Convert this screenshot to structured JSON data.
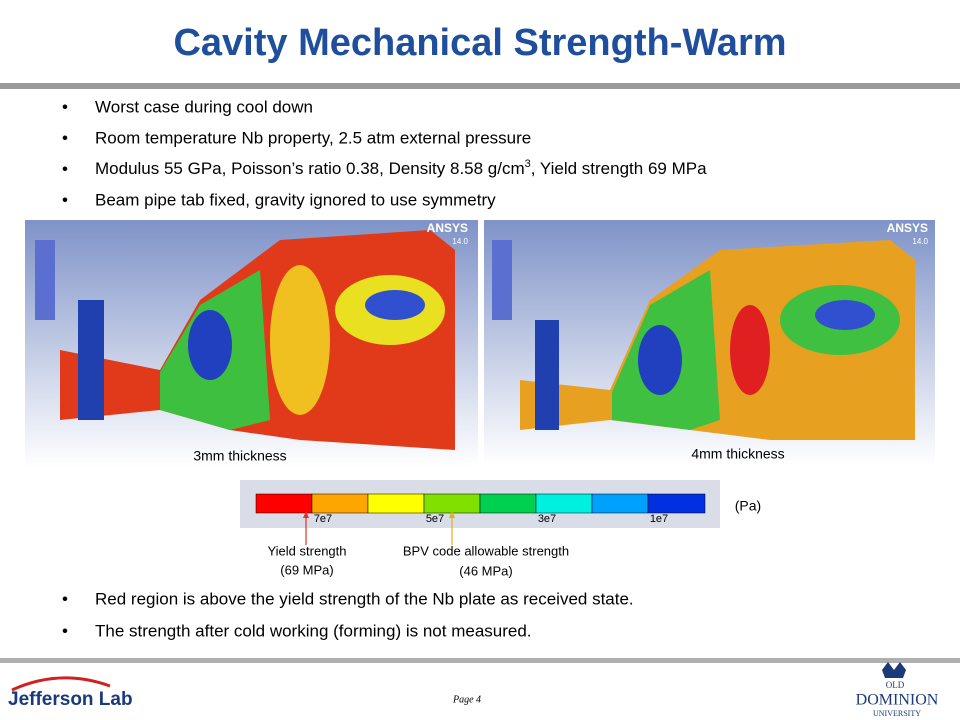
{
  "header": {
    "title": "Cavity Mechanical Strength-Warm"
  },
  "bullets_top": [
    {
      "text": "Worst case during cool down"
    },
    {
      "text": "Room temperature Nb property, 2.5 atm external pressure"
    },
    {
      "text_before": "Modulus 55 GPa, Poisson’s ratio 0.38, Density 8.58 g/cm",
      "superscript": "3",
      "text_after": ", Yield strength 69 MPa"
    },
    {
      "text": "Beam pipe tab fixed, gravity ignored to use symmetry"
    }
  ],
  "images": [
    {
      "caption": "3mm thickness",
      "logo": "ANSYS",
      "version": "14.0"
    },
    {
      "caption": "4mm thickness",
      "logo": "ANSYS",
      "version": "14.0"
    }
  ],
  "colorbar": {
    "ticks": [
      "7e7",
      "5e7",
      "3e7",
      "1e7"
    ],
    "unit": "(Pa)"
  },
  "annotations": [
    {
      "line1": "Yield strength",
      "line2": "(69 MPa)"
    },
    {
      "line1": "BPV code allowable strength",
      "line2": "(46 MPa)"
    }
  ],
  "bullets_bottom": [
    "Red region is above the yield strength of the Nb plate as received state.",
    "The strength after cold working (forming) is not measured."
  ],
  "footer": {
    "left_logo": "Jefferson Lab",
    "page": "Page 4",
    "right_logo_line1": "OLD",
    "right_logo_line2": "DOMINION",
    "right_logo_line3": "UNIVERSITY"
  }
}
